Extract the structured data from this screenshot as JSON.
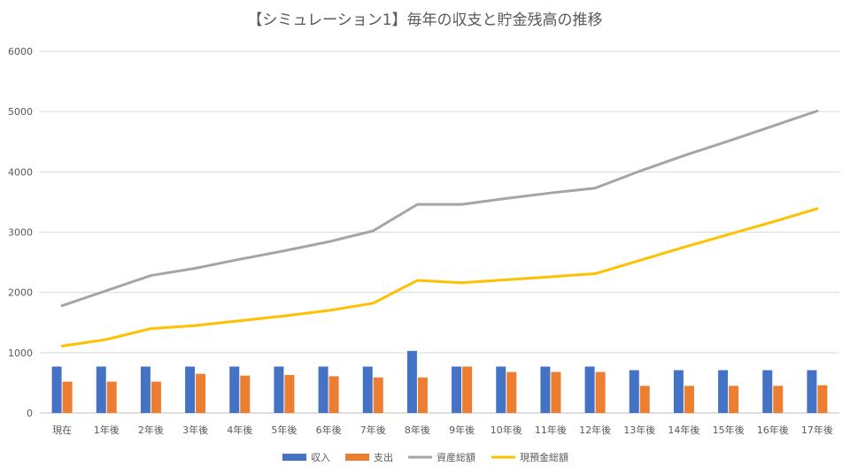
{
  "chart_data": {
    "type": "bar",
    "title": "【シミュレーション1】毎年の収支と貯金残高の推移",
    "xlabel": "",
    "ylabel": "",
    "ylim": [
      0,
      6000
    ],
    "yticks": [
      0,
      1000,
      2000,
      3000,
      4000,
      5000,
      6000
    ],
    "grid": true,
    "legend_position": "bottom",
    "categories": [
      "現在",
      "1年後",
      "2年後",
      "3年後",
      "4年後",
      "5年後",
      "6年後",
      "7年後",
      "8年後",
      "9年後",
      "10年後",
      "11年後",
      "12年後",
      "13年後",
      "14年後",
      "15年後",
      "16年後",
      "17年後"
    ],
    "series": [
      {
        "name": "収入",
        "type": "bar",
        "color": "#4472C4",
        "values": [
          770,
          770,
          770,
          770,
          770,
          770,
          770,
          770,
          1030,
          770,
          770,
          770,
          770,
          710,
          710,
          710,
          710,
          710
        ]
      },
      {
        "name": "支出",
        "type": "bar",
        "color": "#ED7D31",
        "values": [
          520,
          520,
          520,
          650,
          620,
          630,
          610,
          590,
          590,
          770,
          680,
          680,
          680,
          450,
          450,
          450,
          450,
          460
        ]
      },
      {
        "name": "資産総額",
        "type": "line",
        "color": "#A5A5A5",
        "values": [
          1780,
          2030,
          2280,
          2400,
          2550,
          2690,
          2840,
          3020,
          3460,
          3460,
          3560,
          3650,
          3730,
          4010,
          4270,
          4510,
          4760,
          5010
        ]
      },
      {
        "name": "現預金総額",
        "type": "line",
        "color": "#FFC000",
        "values": [
          1110,
          1220,
          1400,
          1450,
          1530,
          1610,
          1700,
          1820,
          2200,
          2160,
          2210,
          2260,
          2310,
          2530,
          2750,
          2960,
          3170,
          3390
        ]
      }
    ]
  }
}
